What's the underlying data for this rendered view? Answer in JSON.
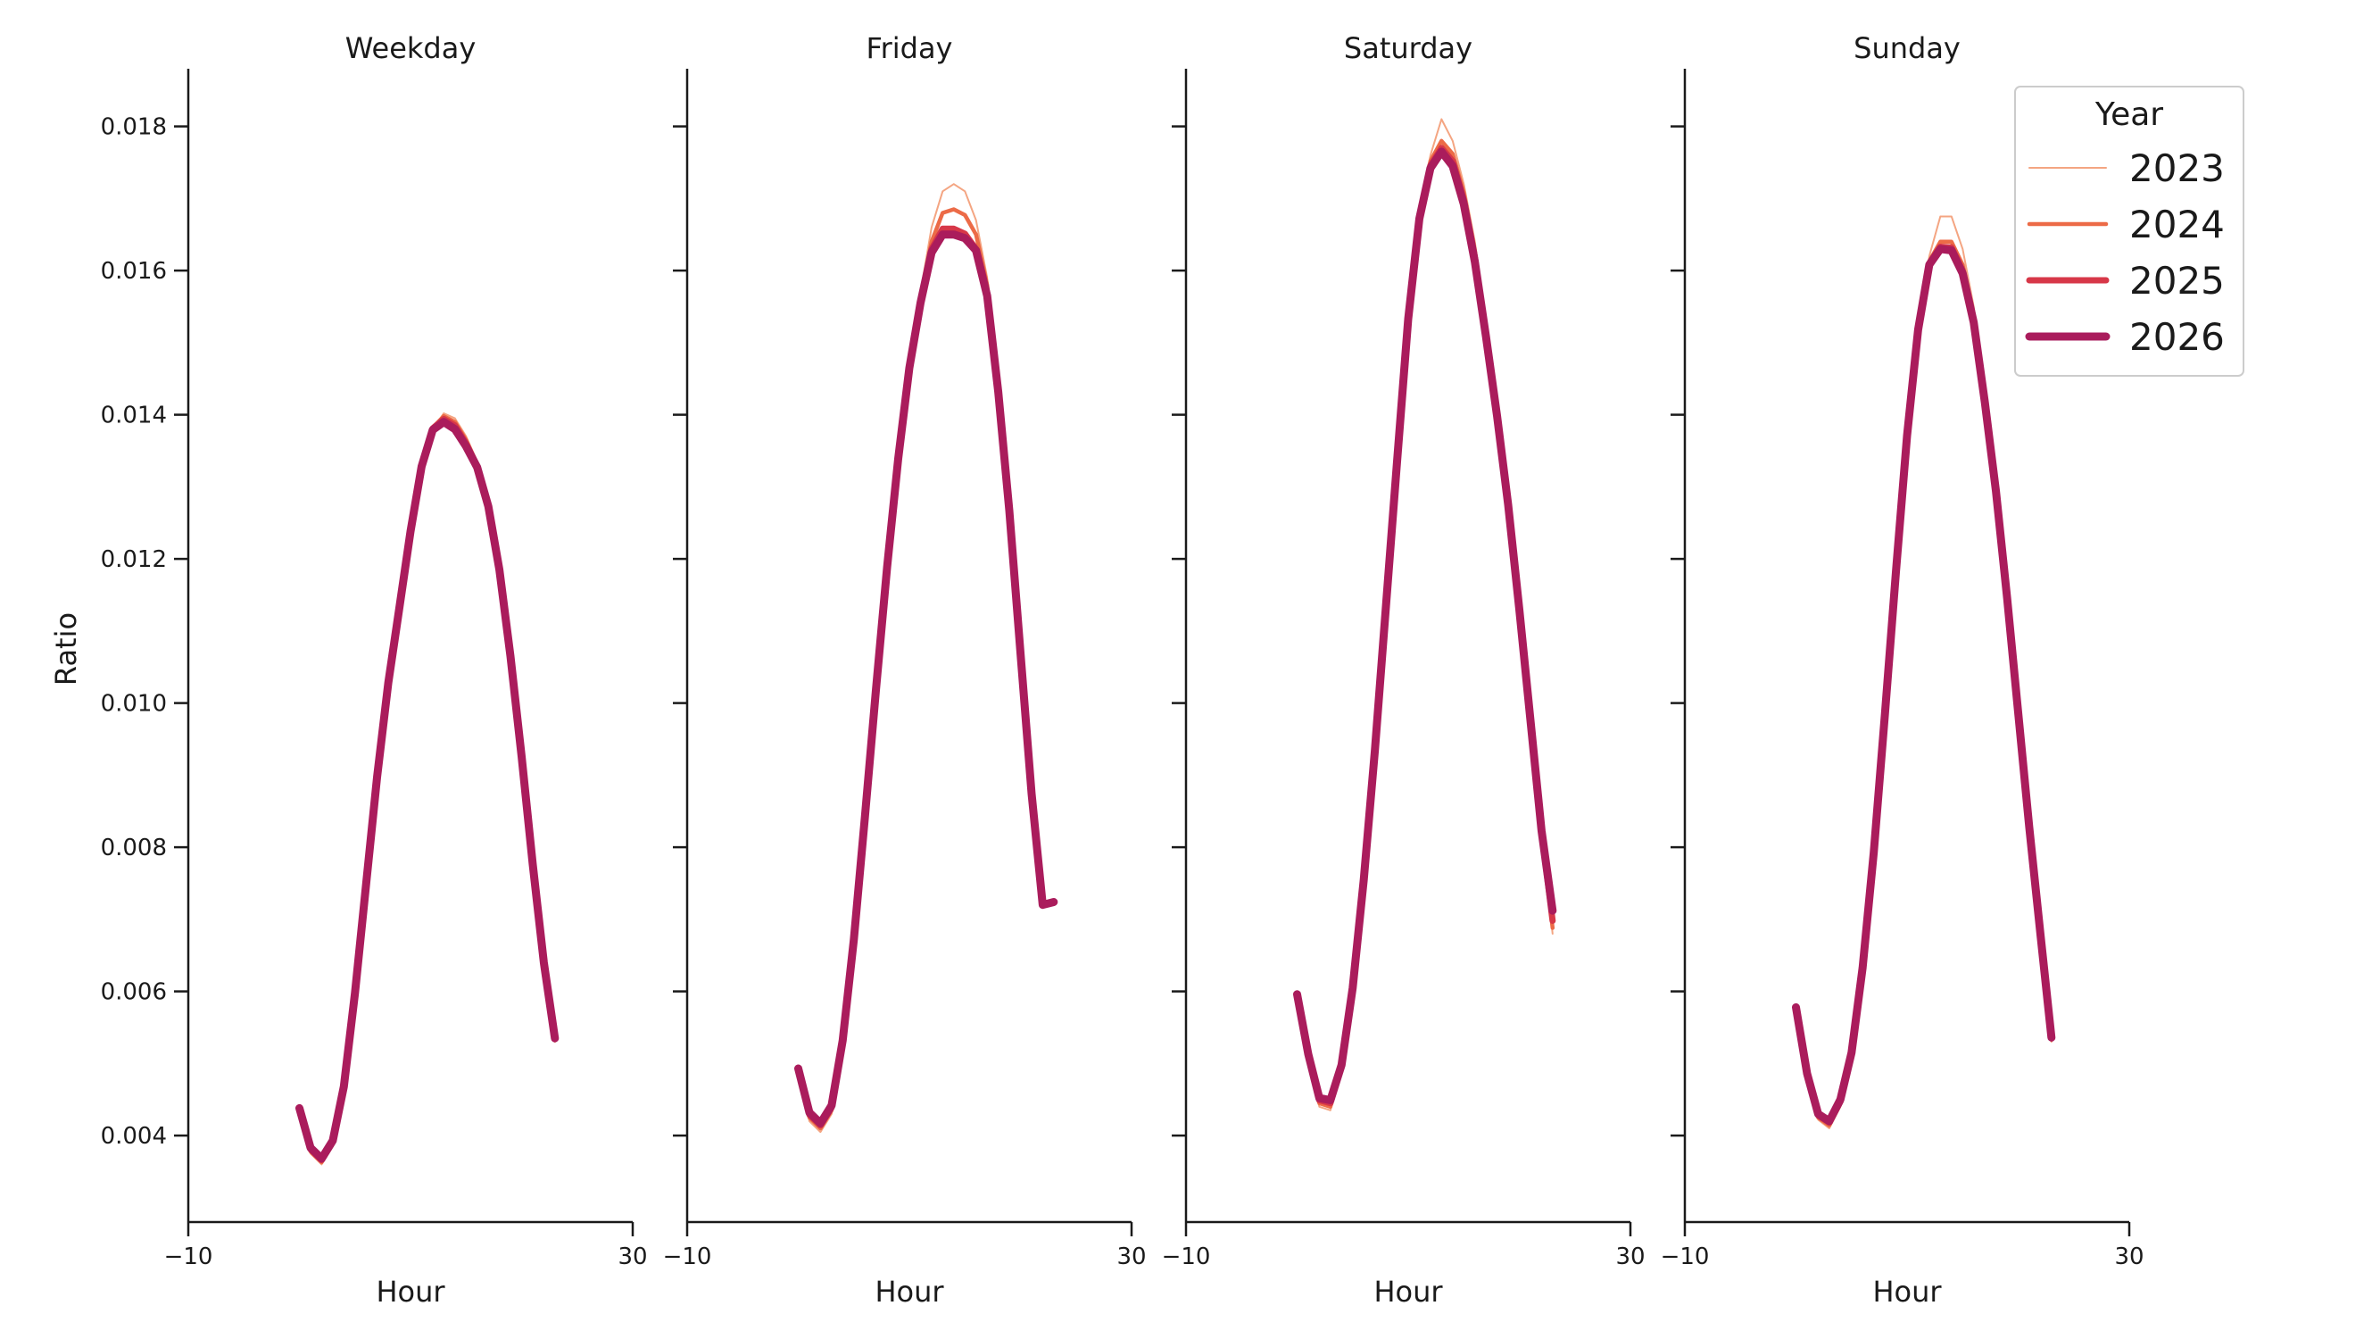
{
  "chart_data": {
    "type": "line",
    "layout": "facet-grid",
    "ylabel": "Ratio",
    "xlabel": "Hour",
    "xlim": [
      -10,
      30
    ],
    "ylim": [
      0.0028,
      0.0188
    ],
    "xticks": [
      -10,
      30
    ],
    "xtick_labels": [
      "−10",
      "30"
    ],
    "yticks": [
      0.004,
      0.006,
      0.008,
      0.01,
      0.012,
      0.014,
      0.016,
      0.018
    ],
    "ytick_labels": [
      "0.004",
      "0.006",
      "0.008",
      "0.010",
      "0.012",
      "0.014",
      "0.016",
      "0.018"
    ],
    "grid": false,
    "legend": {
      "title": "Year",
      "position": "top-right",
      "entries": [
        {
          "label": "2023",
          "color": "#f4a582",
          "width": 2
        },
        {
          "label": "2024",
          "color": "#ec6b47",
          "width": 4.5
        },
        {
          "label": "2025",
          "color": "#d73748",
          "width": 7
        },
        {
          "label": "2026",
          "color": "#aa1c5c",
          "width": 9
        }
      ]
    },
    "x": [
      0,
      1,
      2,
      3,
      4,
      5,
      6,
      7,
      8,
      9,
      10,
      11,
      12,
      13,
      14,
      15,
      16,
      17,
      18,
      19,
      20,
      21,
      22,
      23
    ],
    "panels": [
      {
        "title": "Weekday",
        "series": [
          {
            "name": "2023",
            "values": [
              0.00435,
              0.00375,
              0.0036,
              0.00385,
              0.0046,
              0.0059,
              0.0074,
              0.0089,
              0.0102,
              0.01125,
              0.01232,
              0.01325,
              0.0138,
              0.01402,
              0.01395,
              0.0137,
              0.01335,
              0.0128,
              0.0119,
              0.0107,
              0.0093,
              0.0078,
              0.0064,
              0.0053
            ]
          },
          {
            "name": "2024",
            "values": [
              0.00436,
              0.00378,
              0.00363,
              0.00388,
              0.00462,
              0.00592,
              0.00742,
              0.00892,
              0.01022,
              0.01128,
              0.01234,
              0.01327,
              0.01382,
              0.01398,
              0.0139,
              0.01365,
              0.01332,
              0.01277,
              0.01188,
              0.01068,
              0.00928,
              0.00778,
              0.0064,
              0.00532
            ]
          },
          {
            "name": "2025",
            "values": [
              0.00437,
              0.00381,
              0.00366,
              0.00391,
              0.00465,
              0.00595,
              0.00745,
              0.00895,
              0.01025,
              0.0113,
              0.01236,
              0.01328,
              0.01381,
              0.01394,
              0.01385,
              0.0136,
              0.01329,
              0.01275,
              0.01186,
              0.01066,
              0.00927,
              0.00777,
              0.0064,
              0.00534
            ]
          },
          {
            "name": "2026",
            "values": [
              0.00438,
              0.00383,
              0.00368,
              0.00393,
              0.00468,
              0.00598,
              0.00748,
              0.00898,
              0.01028,
              0.01132,
              0.01238,
              0.01328,
              0.01379,
              0.0139,
              0.0138,
              0.01356,
              0.01327,
              0.01273,
              0.01185,
              0.01065,
              0.00926,
              0.00776,
              0.0064,
              0.00535
            ]
          }
        ]
      },
      {
        "title": "Friday",
        "series": [
          {
            "name": "2023",
            "values": [
              0.0049,
              0.0042,
              0.00405,
              0.0043,
              0.0052,
              0.0066,
              0.0083,
              0.0101,
              0.0118,
              0.0133,
              0.0146,
              0.0157,
              0.0166,
              0.0171,
              0.0172,
              0.0171,
              0.0167,
              0.0159,
              0.0145,
              0.0128,
              0.0108,
              0.0088,
              0.0072,
              0.0072
            ]
          },
          {
            "name": "2024",
            "values": [
              0.00491,
              0.00425,
              0.0041,
              0.00435,
              0.00525,
              0.00665,
              0.00835,
              0.01013,
              0.01183,
              0.01333,
              0.01462,
              0.01563,
              0.0164,
              0.0168,
              0.01685,
              0.01677,
              0.0165,
              0.0158,
              0.01444,
              0.01277,
              0.01077,
              0.00879,
              0.0072,
              0.00722
            ]
          },
          {
            "name": "2025",
            "values": [
              0.00492,
              0.00429,
              0.00414,
              0.00439,
              0.00529,
              0.00669,
              0.00839,
              0.01016,
              0.01186,
              0.01336,
              0.01463,
              0.01558,
              0.0163,
              0.01658,
              0.01658,
              0.01651,
              0.0163,
              0.01568,
              0.01435,
              0.0127,
              0.01073,
              0.00876,
              0.0072,
              0.00723
            ]
          },
          {
            "name": "2026",
            "values": [
              0.00493,
              0.00432,
              0.00417,
              0.00442,
              0.00532,
              0.00672,
              0.00842,
              0.01019,
              0.01189,
              0.01339,
              0.01465,
              0.01555,
              0.01625,
              0.0165,
              0.0165,
              0.01645,
              0.01628,
              0.01565,
              0.01432,
              0.01267,
              0.0107,
              0.00874,
              0.0072,
              0.00724
            ]
          }
        ]
      },
      {
        "title": "Saturday",
        "series": [
          {
            "name": "2023",
            "values": [
              0.0059,
              0.00505,
              0.0044,
              0.00435,
              0.0049,
              0.006,
              0.0075,
              0.0093,
              0.0113,
              0.0133,
              0.0153,
              0.0168,
              0.0176,
              0.0181,
              0.0178,
              0.0172,
              0.0164,
              0.0153,
              0.0142,
              0.0129,
              0.0114,
              0.0098,
              0.0082,
              0.0068
            ]
          },
          {
            "name": "2024",
            "values": [
              0.00592,
              0.00508,
              0.00445,
              0.0044,
              0.00493,
              0.00602,
              0.00752,
              0.00932,
              0.01132,
              0.01332,
              0.01532,
              0.01677,
              0.01752,
              0.0178,
              0.01762,
              0.01708,
              0.01628,
              0.0152,
              0.0141,
              0.01283,
              0.01135,
              0.00978,
              0.0082,
              0.00688
            ]
          },
          {
            "name": "2025",
            "values": [
              0.00594,
              0.00511,
              0.00449,
              0.00445,
              0.00496,
              0.00604,
              0.00754,
              0.00934,
              0.01134,
              0.01334,
              0.01533,
              0.01675,
              0.01746,
              0.0177,
              0.01752,
              0.01698,
              0.01618,
              0.01512,
              0.01402,
              0.01278,
              0.01132,
              0.00977,
              0.00822,
              0.00698
            ]
          },
          {
            "name": "2026",
            "values": [
              0.00596,
              0.00513,
              0.00452,
              0.00449,
              0.00498,
              0.00605,
              0.00755,
              0.00935,
              0.01135,
              0.01335,
              0.01533,
              0.01672,
              0.01742,
              0.01765,
              0.01745,
              0.01692,
              0.01612,
              0.01508,
              0.01398,
              0.01275,
              0.0113,
              0.00976,
              0.00823,
              0.00712
            ]
          }
        ]
      },
      {
        "title": "Sunday",
        "series": [
          {
            "name": "2023",
            "values": [
              0.00575,
              0.0048,
              0.00422,
              0.0041,
              0.0044,
              0.0051,
              0.0063,
              0.0079,
              0.0098,
              0.0118,
              0.0137,
              0.0152,
              0.0162,
              0.01675,
              0.01675,
              0.0163,
              0.0155,
              0.0143,
              0.013,
              0.0115,
              0.0099,
              0.0083,
              0.0068,
              0.0053
            ]
          },
          {
            "name": "2024",
            "values": [
              0.00576,
              0.00482,
              0.00425,
              0.00414,
              0.00444,
              0.00512,
              0.00631,
              0.00791,
              0.00981,
              0.01181,
              0.0137,
              0.0152,
              0.01613,
              0.0164,
              0.0164,
              0.01608,
              0.01538,
              0.01423,
              0.01298,
              0.01148,
              0.00989,
              0.00829,
              0.0068,
              0.00533
            ]
          },
          {
            "name": "2025",
            "values": [
              0.00577,
              0.00484,
              0.00428,
              0.00418,
              0.00447,
              0.00514,
              0.00632,
              0.00792,
              0.00982,
              0.01182,
              0.0137,
              0.01519,
              0.0161,
              0.01633,
              0.01632,
              0.016,
              0.01532,
              0.0142,
              0.01296,
              0.01147,
              0.00988,
              0.00829,
              0.0068,
              0.00535
            ]
          },
          {
            "name": "2026",
            "values": [
              0.00578,
              0.00486,
              0.0043,
              0.0042,
              0.0045,
              0.00515,
              0.00633,
              0.00793,
              0.00983,
              0.01183,
              0.01371,
              0.01518,
              0.01608,
              0.0163,
              0.01628,
              0.01596,
              0.01528,
              0.01417,
              0.01294,
              0.01146,
              0.00987,
              0.00828,
              0.0068,
              0.00536
            ]
          }
        ]
      }
    ]
  }
}
